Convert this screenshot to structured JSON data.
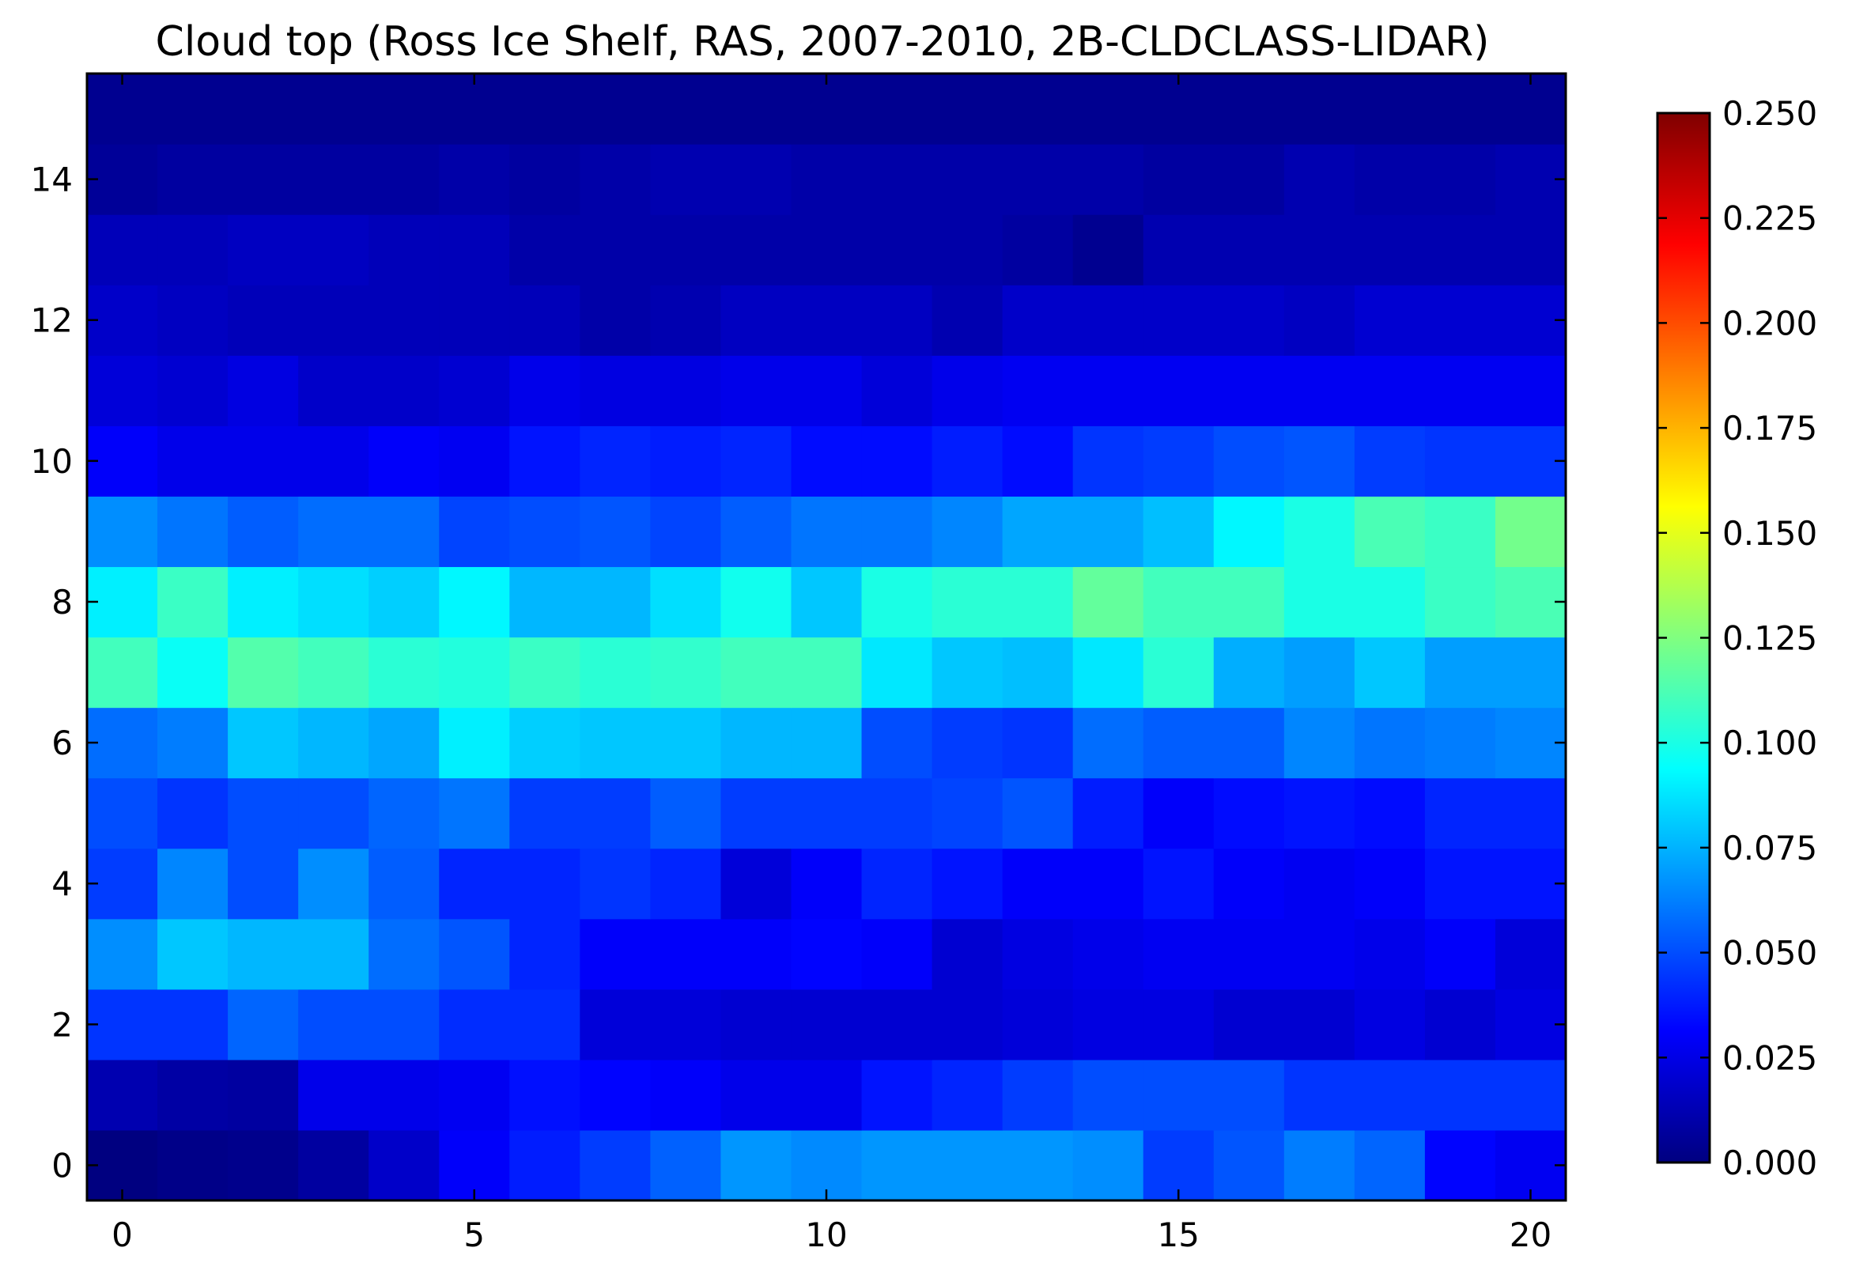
{
  "chart_data": {
    "type": "heatmap",
    "title": "Cloud top (Ross Ice Shelf, RAS, 2007-2010, 2B-CLDCLASS-LIDAR)",
    "xlabel": "",
    "ylabel": "",
    "x": [
      0,
      1,
      2,
      3,
      4,
      5,
      6,
      7,
      8,
      9,
      10,
      11,
      12,
      13,
      14,
      15,
      16,
      17,
      18,
      19,
      20
    ],
    "y": [
      0,
      1,
      2,
      3,
      4,
      5,
      6,
      7,
      8,
      9,
      10,
      11,
      12,
      13,
      14,
      15
    ],
    "xlim": [
      -0.5,
      20.5
    ],
    "ylim": [
      -0.5,
      15.5
    ],
    "xticks": [
      0,
      5,
      10,
      15,
      20
    ],
    "yticks": [
      0,
      2,
      4,
      6,
      8,
      10,
      12,
      14
    ],
    "colormap": "jet",
    "vmin": 0.0,
    "vmax": 0.25,
    "colorbar_ticks": [
      "0.000",
      "0.025",
      "0.050",
      "0.075",
      "0.100",
      "0.125",
      "0.150",
      "0.175",
      "0.200",
      "0.225",
      "0.250"
    ],
    "grid": false,
    "values": [
      [
        0.0,
        0.002,
        0.003,
        0.008,
        0.018,
        0.03,
        0.038,
        0.046,
        0.055,
        0.068,
        0.065,
        0.068,
        0.068,
        0.068,
        0.066,
        0.046,
        0.052,
        0.062,
        0.056,
        0.032,
        0.028
      ],
      [
        0.012,
        0.009,
        0.008,
        0.026,
        0.026,
        0.028,
        0.035,
        0.032,
        0.03,
        0.026,
        0.026,
        0.036,
        0.04,
        0.046,
        0.05,
        0.05,
        0.05,
        0.044,
        0.044,
        0.044,
        0.044
      ],
      [
        0.044,
        0.044,
        0.056,
        0.05,
        0.05,
        0.042,
        0.042,
        0.022,
        0.022,
        0.02,
        0.02,
        0.02,
        0.02,
        0.022,
        0.024,
        0.024,
        0.02,
        0.02,
        0.024,
        0.02,
        0.024
      ],
      [
        0.066,
        0.08,
        0.076,
        0.076,
        0.058,
        0.052,
        0.04,
        0.03,
        0.03,
        0.03,
        0.032,
        0.03,
        0.02,
        0.024,
        0.026,
        0.028,
        0.028,
        0.028,
        0.026,
        0.03,
        0.022
      ],
      [
        0.046,
        0.064,
        0.05,
        0.066,
        0.054,
        0.04,
        0.04,
        0.044,
        0.04,
        0.022,
        0.03,
        0.04,
        0.036,
        0.03,
        0.03,
        0.036,
        0.03,
        0.028,
        0.03,
        0.036,
        0.036
      ],
      [
        0.05,
        0.044,
        0.05,
        0.05,
        0.056,
        0.06,
        0.046,
        0.046,
        0.054,
        0.046,
        0.046,
        0.046,
        0.048,
        0.052,
        0.038,
        0.03,
        0.034,
        0.036,
        0.034,
        0.04,
        0.04
      ],
      [
        0.058,
        0.062,
        0.08,
        0.076,
        0.072,
        0.09,
        0.082,
        0.08,
        0.08,
        0.076,
        0.076,
        0.05,
        0.046,
        0.044,
        0.058,
        0.054,
        0.054,
        0.064,
        0.06,
        0.062,
        0.064
      ],
      [
        0.11,
        0.096,
        0.114,
        0.11,
        0.104,
        0.102,
        0.108,
        0.104,
        0.106,
        0.11,
        0.11,
        0.088,
        0.08,
        0.078,
        0.088,
        0.104,
        0.074,
        0.07,
        0.08,
        0.07,
        0.07
      ],
      [
        0.09,
        0.108,
        0.09,
        0.086,
        0.082,
        0.092,
        0.076,
        0.076,
        0.086,
        0.098,
        0.08,
        0.1,
        0.104,
        0.104,
        0.118,
        0.11,
        0.11,
        0.1,
        0.1,
        0.108,
        0.112
      ],
      [
        0.066,
        0.06,
        0.054,
        0.058,
        0.058,
        0.048,
        0.05,
        0.052,
        0.048,
        0.054,
        0.06,
        0.06,
        0.064,
        0.072,
        0.072,
        0.078,
        0.092,
        0.1,
        0.112,
        0.108,
        0.122
      ],
      [
        0.03,
        0.026,
        0.026,
        0.026,
        0.03,
        0.028,
        0.036,
        0.04,
        0.038,
        0.04,
        0.034,
        0.034,
        0.038,
        0.034,
        0.044,
        0.046,
        0.05,
        0.052,
        0.046,
        0.044,
        0.044
      ],
      [
        0.022,
        0.02,
        0.024,
        0.018,
        0.018,
        0.02,
        0.026,
        0.024,
        0.024,
        0.026,
        0.026,
        0.022,
        0.026,
        0.028,
        0.028,
        0.028,
        0.028,
        0.028,
        0.028,
        0.028,
        0.028
      ],
      [
        0.018,
        0.016,
        0.014,
        0.014,
        0.014,
        0.014,
        0.014,
        0.01,
        0.012,
        0.016,
        0.016,
        0.016,
        0.012,
        0.018,
        0.018,
        0.018,
        0.018,
        0.016,
        0.02,
        0.02,
        0.02
      ],
      [
        0.014,
        0.014,
        0.016,
        0.016,
        0.014,
        0.014,
        0.01,
        0.01,
        0.01,
        0.01,
        0.01,
        0.01,
        0.01,
        0.008,
        0.004,
        0.012,
        0.012,
        0.012,
        0.012,
        0.012,
        0.012
      ],
      [
        0.006,
        0.008,
        0.008,
        0.008,
        0.008,
        0.01,
        0.008,
        0.01,
        0.012,
        0.012,
        0.01,
        0.01,
        0.01,
        0.01,
        0.01,
        0.008,
        0.008,
        0.012,
        0.01,
        0.01,
        0.012
      ],
      [
        0.004,
        0.004,
        0.004,
        0.004,
        0.004,
        0.004,
        0.004,
        0.004,
        0.004,
        0.004,
        0.004,
        0.004,
        0.004,
        0.004,
        0.004,
        0.004,
        0.004,
        0.004,
        0.004,
        0.004,
        0.004
      ]
    ]
  }
}
